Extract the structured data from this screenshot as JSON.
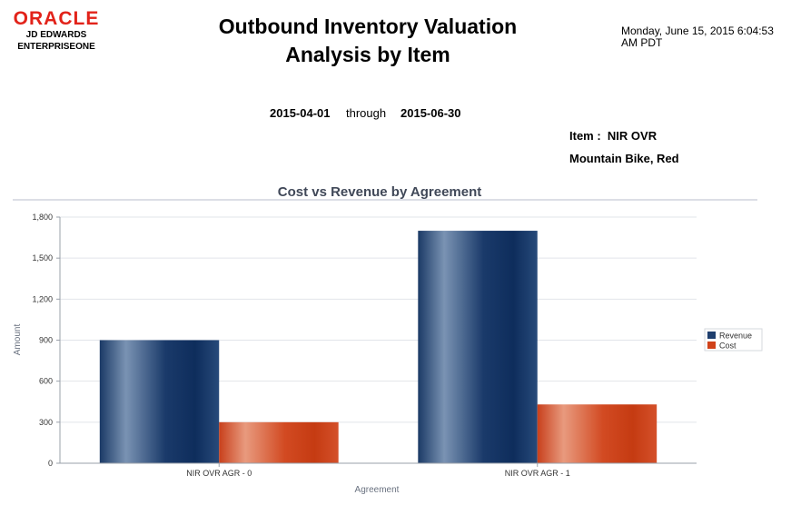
{
  "header": {
    "logo": {
      "brand": "ORACLE",
      "line1": "JD EDWARDS",
      "line2": "ENTERPRISEONE"
    },
    "title_line1": "Outbound Inventory Valuation",
    "title_line2": "Analysis by Item",
    "run_date_line1": "Monday, June 15, 2015 6:04:53",
    "run_date_line2": "AM PDT"
  },
  "filters": {
    "from_date": "2015-04-01",
    "through_label": "through",
    "to_date": "2015-06-30",
    "item_label": "Item :",
    "item_value": "NIR OVR",
    "item_description": "Mountain Bike, Red"
  },
  "chart_data": {
    "type": "bar",
    "title": "Cost vs Revenue by Agreement",
    "xlabel": "Agreement",
    "ylabel": "Amount",
    "categories": [
      "NIR OVR AGR - 0",
      "NIR OVR AGR - 1"
    ],
    "series": [
      {
        "name": "Revenue",
        "values": [
          900,
          1700
        ],
        "color": "#1f3f6e"
      },
      {
        "name": "Cost",
        "values": [
          300,
          430
        ],
        "color": "#d0421a"
      }
    ],
    "ylim": [
      0,
      1800
    ],
    "yticks": [
      0,
      300,
      600,
      900,
      1200,
      1500,
      1800
    ],
    "ytick_labels": [
      "0",
      "300",
      "600",
      "900",
      "1,200",
      "1,500",
      "1,800"
    ],
    "grid": true,
    "legend": "right"
  }
}
